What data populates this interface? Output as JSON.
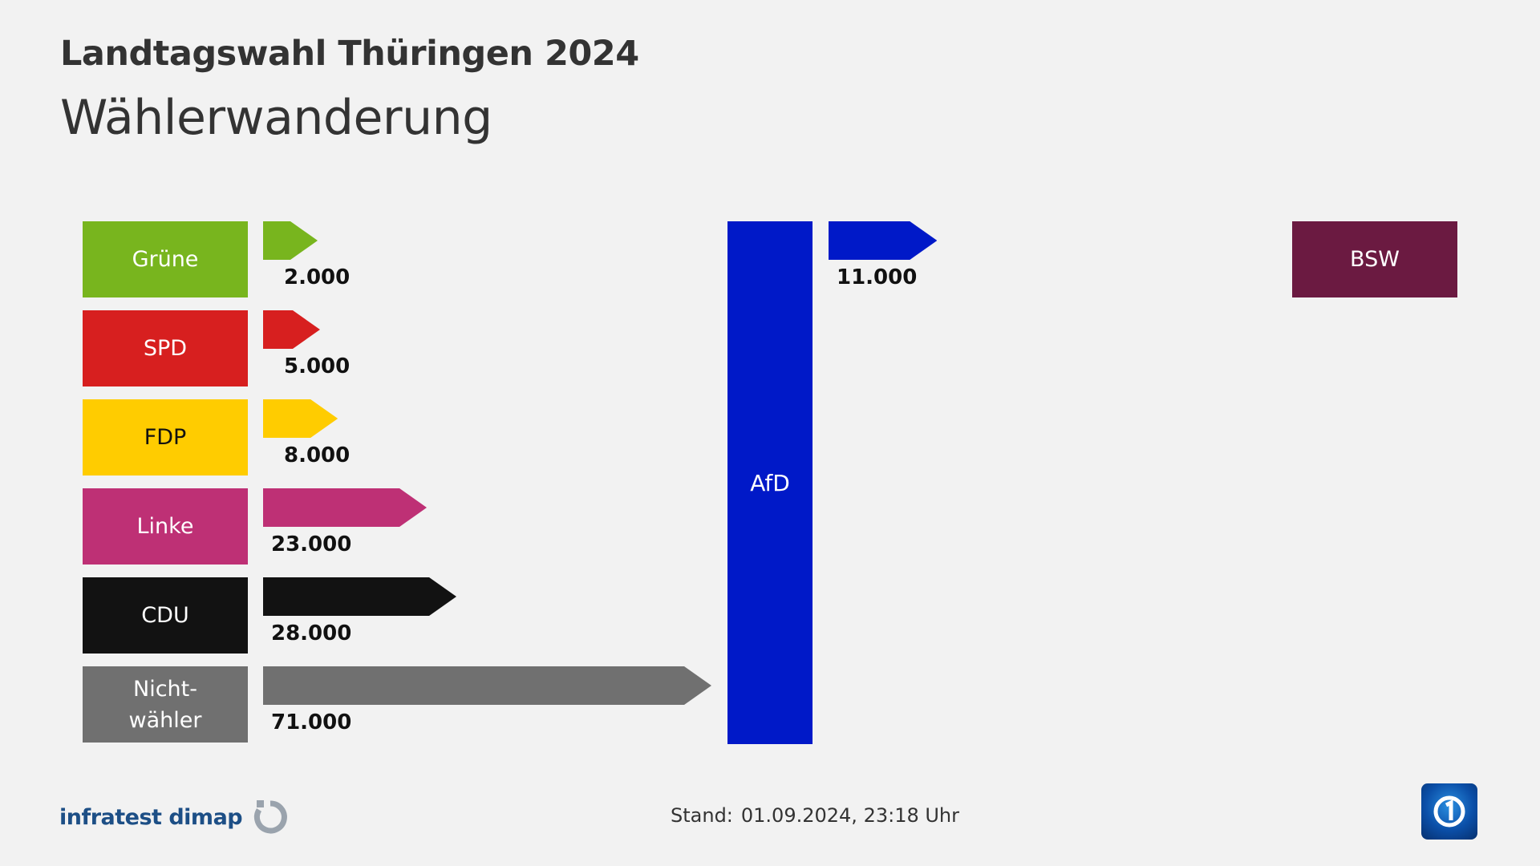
{
  "header": {
    "kicker": "Landtagswahl Thüringen 2024",
    "title": "Wählerwanderung"
  },
  "chart_data": {
    "type": "bar",
    "target": {
      "label": "AfD",
      "color": "#0019c8"
    },
    "inflows": [
      {
        "source": "Grüne",
        "value": 2000,
        "value_label": "2.000",
        "color": "#78b51e",
        "text_color": "#ffffff"
      },
      {
        "source": "SPD",
        "value": 5000,
        "value_label": "5.000",
        "color": "#d71f1f",
        "text_color": "#ffffff"
      },
      {
        "source": "FDP",
        "value": 8000,
        "value_label": "8.000",
        "color": "#ffcc00",
        "text_color": "#111111"
      },
      {
        "source": "Linke",
        "value": 23000,
        "value_label": "23.000",
        "color": "#be3075",
        "text_color": "#ffffff"
      },
      {
        "source": "CDU",
        "value": 28000,
        "value_label": "28.000",
        "color": "#121212",
        "text_color": "#ffffff"
      },
      {
        "source": "Nicht-\nwähler",
        "value": 71000,
        "value_label": "71.000",
        "color": "#707070",
        "text_color": "#ffffff"
      }
    ],
    "outflows": [
      {
        "destination": "BSW",
        "value": 11000,
        "value_label": "11.000",
        "color": "#0019c8",
        "box_color": "#6b1a41"
      }
    ]
  },
  "footer": {
    "source": "infratest dimap",
    "stand_label": "Stand:",
    "stand_value": "01.09.2024, 23:18 Uhr"
  },
  "logos": {
    "source_icon": "infratest-dimap-logo-icon",
    "broadcaster_icon": "ard-logo-icon"
  }
}
